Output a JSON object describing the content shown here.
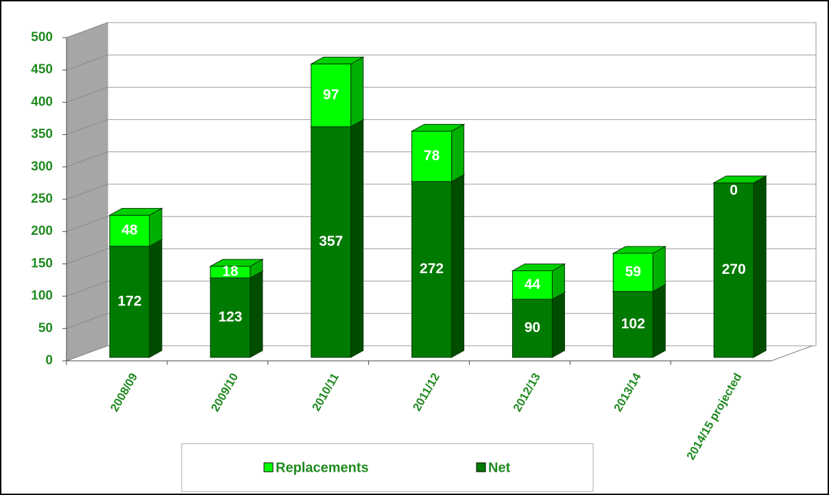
{
  "chart_data": {
    "type": "bar3d_stacked",
    "categories": [
      "2008/09",
      "2009/10",
      "2010/11",
      "2011/12",
      "2012/13",
      "2013/14",
      "2014/15 projected"
    ],
    "series": [
      {
        "name": "Net",
        "color": "#007a00",
        "values": [
          172,
          123,
          357,
          272,
          90,
          102,
          270
        ]
      },
      {
        "name": "Replacements",
        "color": "#00ff00",
        "values": [
          48,
          18,
          97,
          78,
          44,
          59,
          0
        ]
      }
    ],
    "ylim": [
      0,
      500
    ],
    "yticks": [
      0,
      50,
      100,
      150,
      200,
      250,
      300,
      350,
      400,
      450,
      500
    ],
    "grid": true,
    "legend": "bottom"
  }
}
